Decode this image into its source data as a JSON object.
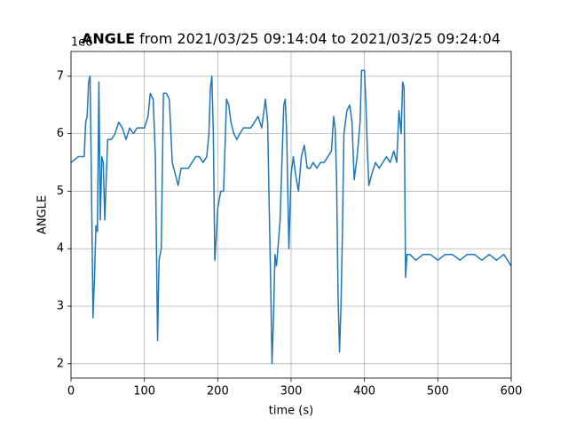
{
  "chart_data": {
    "type": "line",
    "title": {
      "variable": "ANGLE",
      "range": "from 2021/03/25 09:14:04 to 2021/03/25 09:24:04"
    },
    "y_offset_label": "1e6",
    "xlabel": "time (s)",
    "ylabel": "ANGLE",
    "x": [
      0,
      10,
      18,
      20,
      22,
      24,
      26,
      28,
      30,
      32,
      34,
      36,
      38,
      40,
      42,
      44,
      46,
      48,
      50,
      55,
      60,
      65,
      70,
      75,
      80,
      85,
      90,
      95,
      100,
      105,
      108,
      112,
      115,
      118,
      120,
      123,
      126,
      130,
      134,
      138,
      142,
      146,
      150,
      155,
      160,
      165,
      170,
      175,
      180,
      185,
      188,
      190,
      192,
      194,
      196,
      198,
      200,
      204,
      208,
      212,
      215,
      218,
      222,
      226,
      230,
      235,
      240,
      245,
      250,
      255,
      260,
      265,
      268,
      272,
      274,
      276,
      278,
      280,
      282,
      285,
      288,
      290,
      292,
      294,
      297,
      300,
      303,
      306,
      310,
      314,
      318,
      322,
      326,
      330,
      335,
      340,
      345,
      350,
      355,
      358,
      360,
      362,
      364,
      366,
      368,
      370,
      372,
      376,
      380,
      383,
      386,
      390,
      394,
      396,
      400,
      402,
      404,
      406,
      410,
      415,
      420,
      425,
      430,
      435,
      440,
      444,
      447,
      450,
      452,
      454,
      456,
      458,
      462,
      470,
      480,
      490,
      500,
      510,
      520,
      530,
      540,
      550,
      560,
      570,
      580,
      590,
      600
    ],
    "series": [
      {
        "name": "ANGLE",
        "color": "#1f77b4",
        "values": [
          5.5,
          5.6,
          5.6,
          6.2,
          6.3,
          6.9,
          7.0,
          5.0,
          2.8,
          3.5,
          4.4,
          4.3,
          6.9,
          4.5,
          5.6,
          5.5,
          4.5,
          5.2,
          5.9,
          5.9,
          6.0,
          6.2,
          6.1,
          5.9,
          6.1,
          6.0,
          6.1,
          6.1,
          6.1,
          6.3,
          6.7,
          6.6,
          5.6,
          2.4,
          3.8,
          4.0,
          6.7,
          6.7,
          6.6,
          5.5,
          5.3,
          5.1,
          5.4,
          5.4,
          5.4,
          5.5,
          5.6,
          5.6,
          5.5,
          5.6,
          6.0,
          6.8,
          7.0,
          6.0,
          3.8,
          4.2,
          4.7,
          5.0,
          5.0,
          6.6,
          6.5,
          6.2,
          6.0,
          5.9,
          6.0,
          6.1,
          6.1,
          6.1,
          6.2,
          6.3,
          6.1,
          6.6,
          6.2,
          3.5,
          2.0,
          2.8,
          3.9,
          3.7,
          4.0,
          4.5,
          5.7,
          6.5,
          6.6,
          6.0,
          4.0,
          5.3,
          5.6,
          5.3,
          5.0,
          5.6,
          5.8,
          5.4,
          5.4,
          5.5,
          5.4,
          5.5,
          5.5,
          5.6,
          5.7,
          6.3,
          6.1,
          5.2,
          3.2,
          2.2,
          3.0,
          4.3,
          6.0,
          6.4,
          6.5,
          6.2,
          5.2,
          5.6,
          6.2,
          7.1,
          7.1,
          6.5,
          5.7,
          5.1,
          5.3,
          5.5,
          5.4,
          5.5,
          5.6,
          5.5,
          5.7,
          5.5,
          6.4,
          6.0,
          6.9,
          6.8,
          3.5,
          3.9,
          3.9,
          3.8,
          3.9,
          3.9,
          3.8,
          3.9,
          3.9,
          3.8,
          3.9,
          3.9,
          3.8,
          3.9,
          3.8,
          3.9,
          3.7
        ]
      }
    ],
    "xlim": [
      0,
      600
    ],
    "xticks": [
      0,
      100,
      200,
      300,
      400,
      500,
      600
    ],
    "ylim": [
      1.75,
      7.43
    ],
    "yticks": [
      2,
      3,
      4,
      5,
      6,
      7
    ],
    "grid": true
  }
}
